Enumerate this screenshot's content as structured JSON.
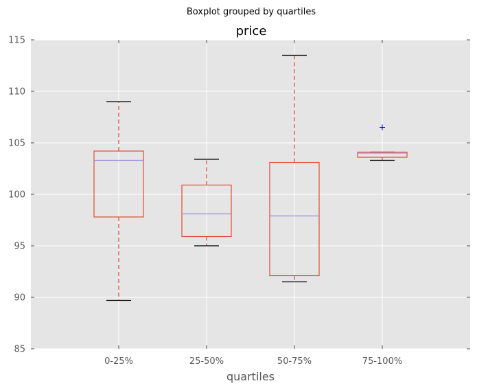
{
  "chart_data": {
    "type": "box",
    "suptitle": "Boxplot grouped by quartiles",
    "title": "price",
    "xlabel": "quartiles",
    "ylabel": "",
    "categories": [
      "0-25%",
      "25-50%",
      "50-75%",
      "75-100%"
    ],
    "ylim": [
      85,
      115
    ],
    "yticks": [
      85,
      90,
      95,
      100,
      105,
      110,
      115
    ],
    "grid": true,
    "boxes": [
      {
        "category": "0-25%",
        "whisker_low": 89.7,
        "q1": 97.8,
        "median": 103.3,
        "q3": 104.2,
        "whisker_high": 109.0,
        "outliers": []
      },
      {
        "category": "25-50%",
        "whisker_low": 95.0,
        "q1": 95.9,
        "median": 98.1,
        "q3": 100.9,
        "whisker_high": 103.4,
        "outliers": []
      },
      {
        "category": "50-75%",
        "whisker_low": 91.5,
        "q1": 92.1,
        "median": 97.9,
        "q3": 103.1,
        "whisker_high": 113.5,
        "outliers": []
      },
      {
        "category": "75-100%",
        "whisker_low": 103.3,
        "q1": 103.6,
        "median": 104.0,
        "q3": 104.1,
        "whisker_high": 104.1,
        "outliers": [
          106.5
        ]
      }
    ],
    "colors": {
      "plot_background": "#e5e5e5",
      "grid": "#ffffff",
      "box": "#e24a33",
      "whisker": "#e24a33",
      "cap": "#000000",
      "median": "#988ed5",
      "outlier": "#0000ff",
      "tick_text": "#555555"
    }
  }
}
